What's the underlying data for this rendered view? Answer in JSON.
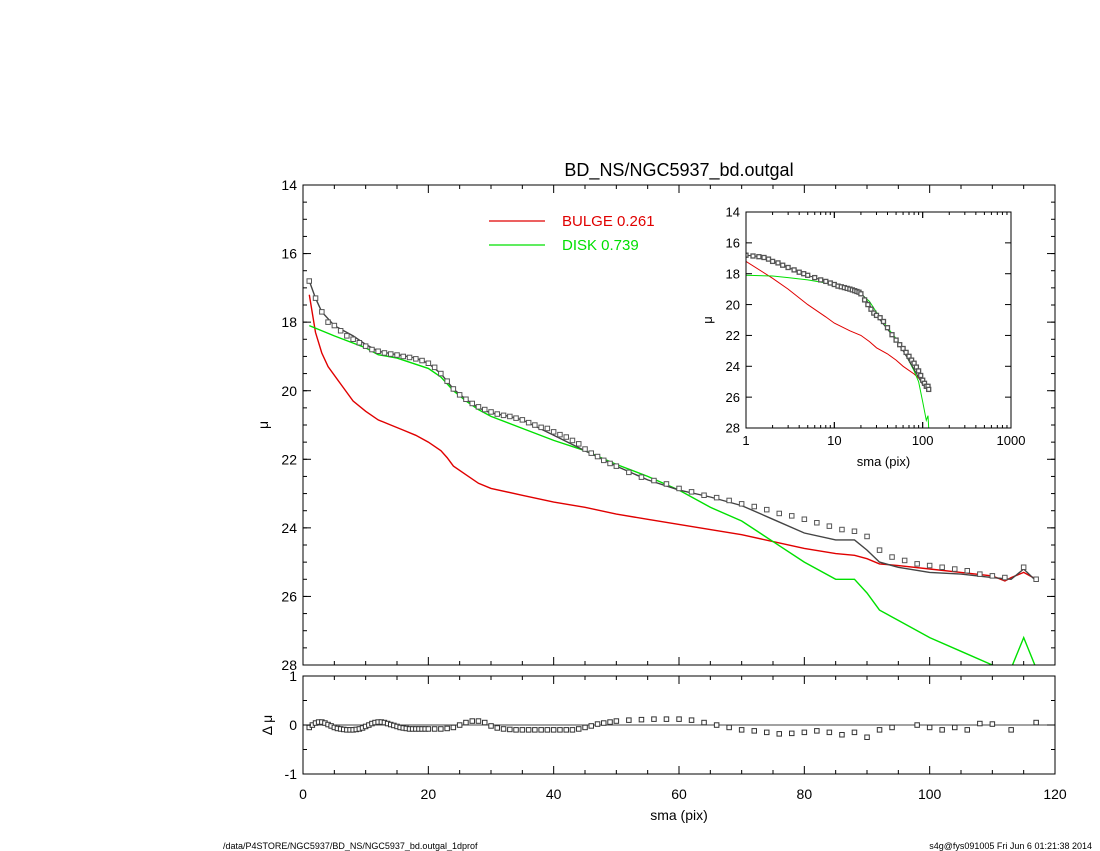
{
  "chart_data": [
    {
      "id": "main",
      "type": "line",
      "title": "BD_NS/NGC5937_bd.outgal",
      "xlabel": "",
      "ylabel": "μ",
      "xlim": [
        0,
        120
      ],
      "ylim": [
        28,
        14
      ],
      "yticks": [
        "14",
        "16",
        "18",
        "20",
        "22",
        "24",
        "26",
        "28"
      ],
      "legend": [
        {
          "label": "BULGE  0.261",
          "color": "#e00000"
        },
        {
          "label": "DISK  0.739",
          "color": "#00e000"
        }
      ],
      "series": [
        {
          "name": "BULGE  0.261",
          "color": "#e00000",
          "style": "line",
          "x": [
            1,
            2,
            3,
            4,
            6,
            8,
            10,
            12,
            14,
            16,
            18,
            20,
            22,
            23,
            24,
            26,
            28,
            30,
            35,
            40,
            45,
            50,
            55,
            60,
            65,
            70,
            75,
            80,
            85,
            88,
            90,
            92,
            95,
            100,
            105,
            110,
            112,
            113,
            115,
            117
          ],
          "y": [
            17.2,
            18.3,
            18.9,
            19.3,
            19.8,
            20.3,
            20.6,
            20.85,
            21.0,
            21.15,
            21.3,
            21.5,
            21.75,
            21.95,
            22.2,
            22.45,
            22.7,
            22.85,
            23.05,
            23.25,
            23.4,
            23.6,
            23.75,
            23.9,
            24.05,
            24.2,
            24.4,
            24.6,
            24.75,
            24.8,
            24.9,
            25.05,
            25.1,
            25.2,
            25.3,
            25.4,
            25.55,
            25.45,
            25.3,
            25.5
          ]
        },
        {
          "name": "DISK  0.739",
          "color": "#00e000",
          "style": "line",
          "x": [
            1,
            5,
            10,
            12,
            15,
            20,
            22,
            24,
            26,
            28,
            30,
            35,
            40,
            45,
            50,
            55,
            60,
            65,
            70,
            75,
            80,
            85,
            88,
            90,
            92,
            95,
            100,
            105,
            110,
            113,
            115,
            117
          ],
          "y": [
            18.1,
            18.4,
            18.75,
            18.95,
            19.05,
            19.35,
            19.6,
            20.0,
            20.3,
            20.55,
            20.75,
            21.1,
            21.45,
            21.75,
            22.15,
            22.5,
            22.9,
            23.4,
            23.8,
            24.4,
            25.0,
            25.5,
            25.5,
            25.9,
            26.4,
            26.7,
            27.2,
            27.6,
            28.0,
            28.1,
            27.2,
            28.1
          ]
        },
        {
          "name": "",
          "color": "#444444",
          "style": "line",
          "x": [
            1,
            2,
            3,
            5,
            8,
            10,
            12,
            15,
            18,
            20,
            22,
            24,
            26,
            28,
            30,
            33,
            35,
            40,
            45,
            50,
            55,
            60,
            65,
            70,
            75,
            80,
            85,
            88,
            90,
            92,
            95,
            100,
            105,
            110,
            113,
            115,
            117
          ],
          "y": [
            16.8,
            17.3,
            17.7,
            18.1,
            18.4,
            18.65,
            18.85,
            18.95,
            19.05,
            19.2,
            19.5,
            19.95,
            20.25,
            20.5,
            20.65,
            20.75,
            20.85,
            21.3,
            21.75,
            22.2,
            22.6,
            22.9,
            23.1,
            23.35,
            23.75,
            24.15,
            24.35,
            24.35,
            24.65,
            25.0,
            25.15,
            25.3,
            25.35,
            25.45,
            25.5,
            25.2,
            25.55
          ]
        },
        {
          "name": "",
          "color": "#555555",
          "style": "squares",
          "x": [
            1,
            2,
            3,
            4,
            5,
            6,
            7,
            8,
            9,
            10,
            11,
            12,
            13,
            14,
            15,
            16,
            17,
            18,
            19,
            20,
            21,
            22,
            23,
            24,
            25,
            26,
            27,
            28,
            29,
            30,
            31,
            32,
            33,
            34,
            35,
            36,
            37,
            38,
            39,
            40,
            41,
            42,
            43,
            44,
            45,
            46,
            47,
            48,
            49,
            50,
            52,
            54,
            56,
            58,
            60,
            62,
            64,
            66,
            68,
            70,
            72,
            74,
            76,
            78,
            80,
            82,
            84,
            86,
            88,
            90,
            92,
            94,
            96,
            98,
            100,
            102,
            104,
            106,
            108,
            110,
            112,
            115,
            117
          ],
          "y": [
            16.8,
            17.3,
            17.7,
            18.0,
            18.1,
            18.25,
            18.4,
            18.5,
            18.6,
            18.7,
            18.8,
            18.85,
            18.9,
            18.93,
            18.96,
            19.0,
            19.03,
            19.07,
            19.12,
            19.2,
            19.32,
            19.5,
            19.72,
            19.95,
            20.12,
            20.25,
            20.37,
            20.47,
            20.55,
            20.62,
            20.68,
            20.72,
            20.75,
            20.8,
            20.85,
            20.93,
            21.0,
            21.07,
            21.1,
            21.2,
            21.28,
            21.35,
            21.45,
            21.55,
            21.7,
            21.82,
            21.92,
            22.03,
            22.12,
            22.2,
            22.38,
            22.52,
            22.62,
            22.72,
            22.85,
            22.95,
            23.05,
            23.12,
            23.2,
            23.3,
            23.38,
            23.47,
            23.58,
            23.65,
            23.75,
            23.85,
            23.95,
            24.05,
            24.1,
            24.25,
            24.65,
            24.85,
            24.95,
            25.05,
            25.1,
            25.15,
            25.2,
            25.25,
            25.35,
            25.4,
            25.45,
            25.15,
            25.5
          ]
        }
      ]
    },
    {
      "id": "residual",
      "type": "scatter",
      "xlabel": "sma (pix)",
      "ylabel": "Δ μ",
      "xlim": [
        0,
        120
      ],
      "ylim": [
        -1,
        1
      ],
      "xticks": [
        "0",
        "20",
        "40",
        "60",
        "80",
        "100",
        "120"
      ],
      "yticks": [
        "1",
        "0",
        "-1"
      ],
      "series": [
        {
          "name": "",
          "color": "#333333",
          "style": "squares",
          "x": [
            1,
            1.5,
            2,
            2.5,
            3,
            3.5,
            4,
            4.5,
            5,
            5.5,
            6,
            6.5,
            7,
            7.5,
            8,
            8.5,
            9,
            9.5,
            10,
            10.5,
            11,
            11.5,
            12,
            12.5,
            13,
            13.5,
            14,
            14.5,
            15,
            15.5,
            16,
            16.5,
            17,
            17.5,
            18,
            18.5,
            19,
            19.5,
            20,
            21,
            22,
            23,
            24,
            25,
            26,
            27,
            28,
            29,
            30,
            31,
            32,
            33,
            34,
            35,
            36,
            37,
            38,
            39,
            40,
            41,
            42,
            43,
            44,
            45,
            46,
            47,
            48,
            49,
            50,
            52,
            54,
            56,
            58,
            60,
            62,
            64,
            66,
            68,
            70,
            72,
            74,
            76,
            78,
            80,
            82,
            84,
            86,
            88,
            90,
            92,
            94,
            98,
            100,
            102,
            104,
            106,
            108,
            110,
            113,
            117
          ],
          "y": [
            -0.05,
            0.0,
            0.04,
            0.06,
            0.06,
            0.04,
            0.01,
            -0.02,
            -0.05,
            -0.07,
            -0.08,
            -0.09,
            -0.1,
            -0.1,
            -0.1,
            -0.09,
            -0.08,
            -0.06,
            -0.03,
            0.0,
            0.03,
            0.05,
            0.06,
            0.06,
            0.05,
            0.03,
            0.01,
            -0.01,
            -0.03,
            -0.05,
            -0.06,
            -0.07,
            -0.08,
            -0.08,
            -0.08,
            -0.08,
            -0.08,
            -0.08,
            -0.08,
            -0.08,
            -0.08,
            -0.07,
            -0.05,
            0.0,
            0.05,
            0.08,
            0.08,
            0.05,
            -0.02,
            -0.06,
            -0.08,
            -0.09,
            -0.1,
            -0.1,
            -0.1,
            -0.1,
            -0.1,
            -0.1,
            -0.1,
            -0.1,
            -0.1,
            -0.1,
            -0.08,
            -0.05,
            -0.02,
            0.02,
            0.04,
            0.06,
            0.08,
            0.1,
            0.11,
            0.12,
            0.12,
            0.12,
            0.1,
            0.05,
            0.0,
            -0.05,
            -0.1,
            -0.12,
            -0.15,
            -0.18,
            -0.17,
            -0.15,
            -0.12,
            -0.15,
            -0.2,
            -0.15,
            -0.25,
            -0.1,
            -0.05,
            0.0,
            -0.05,
            -0.1,
            -0.05,
            -0.1,
            0.03,
            0.02,
            -0.1,
            0.05
          ]
        }
      ]
    },
    {
      "id": "inset",
      "type": "line",
      "xlabel": "sma (pix)",
      "ylabel": "μ",
      "xscale": "log",
      "xlim": [
        1,
        1000
      ],
      "ylim": [
        28,
        14
      ],
      "xticks": [
        "1",
        "10",
        "100",
        "1000"
      ],
      "yticks": [
        "14",
        "16",
        "18",
        "20",
        "22",
        "24",
        "26",
        "28"
      ],
      "series": [
        {
          "name": "",
          "color": "#e00000",
          "style": "line",
          "x": [
            1,
            2,
            3,
            5,
            8,
            10,
            15,
            20,
            25,
            30,
            40,
            50,
            60,
            80,
            100,
            117
          ],
          "y": [
            17.2,
            18.3,
            19.0,
            20.0,
            20.8,
            21.2,
            21.7,
            22.0,
            22.4,
            22.8,
            23.2,
            23.6,
            24.0,
            24.5,
            25.0,
            25.5
          ]
        },
        {
          "name": "",
          "color": "#00e000",
          "style": "line",
          "x": [
            1,
            2,
            3,
            5,
            8,
            10,
            15,
            20,
            25,
            30,
            40,
            50,
            60,
            80,
            90,
            100,
            110,
            115,
            117
          ],
          "y": [
            18.1,
            18.15,
            18.25,
            18.4,
            18.6,
            18.8,
            19.0,
            19.3,
            19.8,
            20.5,
            21.5,
            22.2,
            22.9,
            24.3,
            25.0,
            26.3,
            27.5,
            27.2,
            28.0
          ]
        },
        {
          "name": "",
          "color": "#333333",
          "style": "line",
          "x": [
            1,
            1.5,
            2,
            3,
            5,
            8,
            10,
            15,
            20,
            25,
            30,
            40,
            50,
            60,
            80,
            100,
            117
          ],
          "y": [
            16.8,
            16.9,
            17.2,
            17.6,
            18.1,
            18.5,
            18.8,
            19.0,
            19.2,
            20.0,
            20.7,
            21.6,
            22.3,
            23.0,
            24.2,
            25.2,
            25.5
          ]
        },
        {
          "name": "",
          "color": "#555555",
          "style": "squares",
          "x": [
            1,
            1.2,
            1.4,
            1.6,
            1.8,
            2,
            2.3,
            2.6,
            3,
            3.5,
            4,
            4.5,
            5,
            6,
            7,
            8,
            9,
            10,
            11,
            12,
            13,
            14,
            15,
            16,
            17,
            18,
            19,
            20,
            22,
            24,
            26,
            28,
            30,
            33,
            36,
            40,
            45,
            50,
            55,
            60,
            65,
            70,
            75,
            80,
            85,
            90,
            95,
            100,
            105,
            110,
            115,
            117
          ],
          "y": [
            16.8,
            16.85,
            16.9,
            16.95,
            17.05,
            17.2,
            17.3,
            17.45,
            17.6,
            17.75,
            17.9,
            18.0,
            18.1,
            18.25,
            18.4,
            18.5,
            18.6,
            18.7,
            18.8,
            18.85,
            18.9,
            18.95,
            19.0,
            19.05,
            19.1,
            19.15,
            19.2,
            19.3,
            19.7,
            20.0,
            20.3,
            20.55,
            20.7,
            20.85,
            21.1,
            21.5,
            21.95,
            22.3,
            22.6,
            22.85,
            23.1,
            23.35,
            23.6,
            23.8,
            24.05,
            24.3,
            24.6,
            24.9,
            25.1,
            25.3,
            25.3,
            25.5
          ]
        }
      ]
    }
  ],
  "footer": {
    "left": "/data/P4STORE/NGC5937/BD_NS/NGC5937_bd.outgal_1dprof",
    "right": "s4g@fys091005  Fri Jun  6 01:21:38 2014"
  }
}
